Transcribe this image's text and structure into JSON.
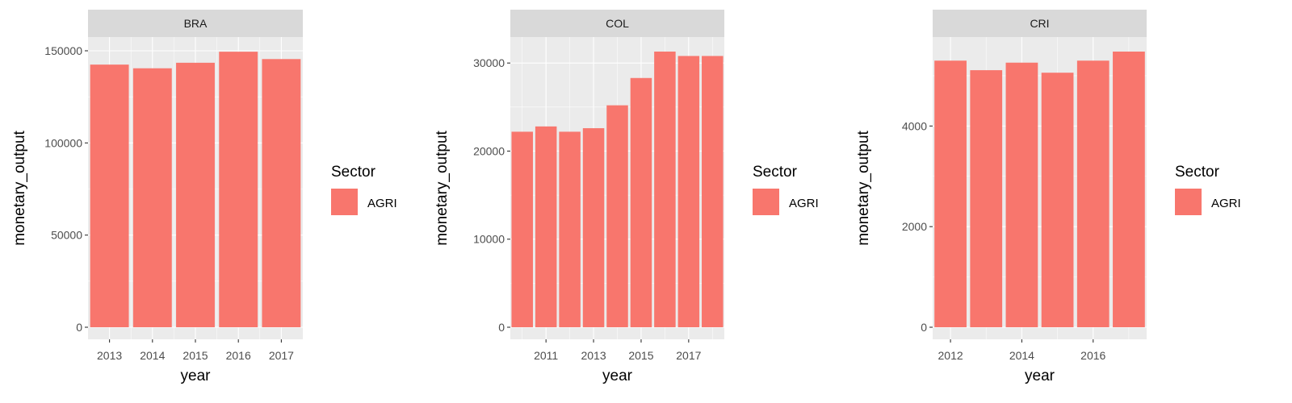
{
  "chart_data": [
    {
      "type": "bar",
      "facet_label": "BRA",
      "x": [
        2013,
        2014,
        2015,
        2016,
        2017
      ],
      "series": [
        {
          "name": "AGRI",
          "values": [
            142500,
            140500,
            143500,
            149500,
            145500
          ]
        }
      ],
      "xlabel": "year",
      "ylabel": "monetary_output",
      "xlim": [
        2012.5,
        2017.5
      ],
      "ylim": [
        0,
        150000
      ],
      "x_ticks": [
        2013,
        2014,
        2015,
        2016,
        2017
      ],
      "y_ticks": [
        0,
        50000,
        100000,
        150000
      ],
      "legend": {
        "title": "Sector",
        "entries": [
          "AGRI"
        ],
        "position": "right"
      },
      "grid": true
    },
    {
      "type": "bar",
      "facet_label": "COL",
      "x": [
        2010,
        2011,
        2012,
        2013,
        2014,
        2015,
        2016,
        2017,
        2018
      ],
      "series": [
        {
          "name": "AGRI",
          "values": [
            22200,
            22800,
            22200,
            22600,
            25200,
            28300,
            31300,
            30800,
            30800
          ]
        }
      ],
      "xlabel": "year",
      "ylabel": "monetary_output",
      "xlim": [
        2009.5,
        2018.5
      ],
      "ylim": [
        0,
        31300
      ],
      "x_ticks": [
        2011,
        2013,
        2015,
        2017
      ],
      "y_ticks": [
        0,
        10000,
        20000,
        30000
      ],
      "legend": {
        "title": "Sector",
        "entries": [
          "AGRI"
        ],
        "position": "right"
      },
      "grid": true
    },
    {
      "type": "bar",
      "facet_label": "CRI",
      "x": [
        2012,
        2013,
        2014,
        2015,
        2016,
        2017
      ],
      "series": [
        {
          "name": "AGRI",
          "values": [
            5300,
            5110,
            5260,
            5060,
            5300,
            5480
          ]
        }
      ],
      "xlabel": "year",
      "ylabel": "monetary_output",
      "xlim": [
        2011.5,
        2017.5
      ],
      "ylim": [
        0,
        5480
      ],
      "x_ticks": [
        2012,
        2014,
        2016
      ],
      "y_ticks": [
        0,
        2000,
        4000
      ],
      "legend": {
        "title": "Sector",
        "entries": [
          "AGRI"
        ],
        "position": "right"
      },
      "grid": true
    }
  ],
  "colors": {
    "bar_fill": "#F8766D",
    "panel_background": "#EBEBEB",
    "strip_background": "#D9D9D9",
    "grid": "#FFFFFF",
    "tick_label": "#4D4D4D"
  }
}
